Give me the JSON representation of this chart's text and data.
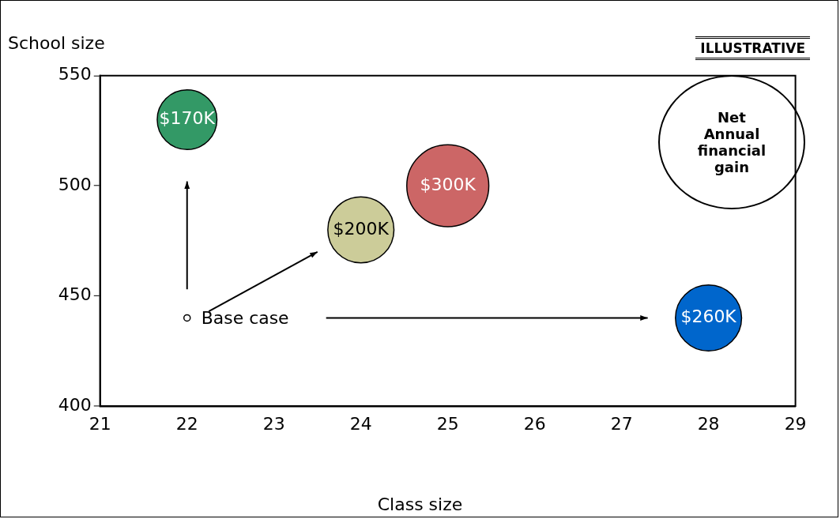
{
  "chart_data": {
    "type": "bubble",
    "xlabel": "Class size",
    "ylabel": "School size",
    "x": [
      22,
      24,
      25,
      28,
      22
    ],
    "values": [
      530,
      480,
      500,
      440,
      440
    ],
    "sizes": [
      0.53,
      0.65,
      1,
      0.65,
      0.006
    ],
    "colors": [
      "#339966",
      "#cccc99",
      "#cc6666",
      "#0066cc",
      "#ffffff"
    ],
    "xlim": [
      21,
      29
    ],
    "xticks": [
      21,
      22,
      23,
      24,
      25,
      26,
      27,
      28,
      29
    ],
    "ylim": [
      400,
      550
    ],
    "yticks": [
      400,
      450,
      500,
      550
    ],
    "grid": false,
    "legend": false,
    "annotations": [
      "ILLUSTRATIVE",
      "Net Annual financial gain",
      {
        "text": "Base case",
        "x": 22,
        "y": 440
      },
      {
        "text": "$170K",
        "x": 22,
        "y": 530
      },
      {
        "text": "$200K",
        "x": 24,
        "y": 480
      },
      {
        "text": "$300K",
        "x": 25,
        "y": 500
      },
      {
        "text": "$260K",
        "x": 28,
        "y": 440
      }
    ]
  }
}
